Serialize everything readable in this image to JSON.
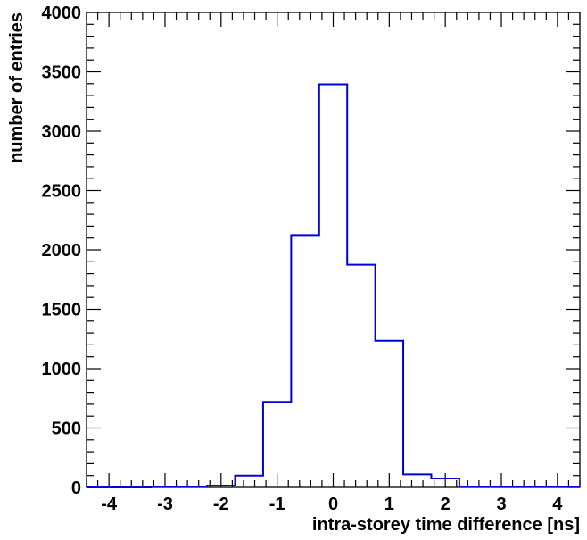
{
  "chart_data": {
    "type": "histogram",
    "xlabel": "intra-storey time difference [ns]",
    "ylabel": "number of entries",
    "xlim": [
      -4.4,
      4.4
    ],
    "ylim": [
      0,
      4000
    ],
    "x_ticks": [
      -4,
      -3,
      -2,
      -1,
      0,
      1,
      2,
      3,
      4
    ],
    "x_tick_labels": [
      "-4",
      "-3",
      "-2",
      "-1",
      "0",
      "1",
      "2",
      "3",
      "4"
    ],
    "y_ticks": [
      0,
      500,
      1000,
      1500,
      2000,
      2500,
      3000,
      3500,
      4000
    ],
    "y_tick_labels": [
      "0",
      "500",
      "1000",
      "1500",
      "2000",
      "2500",
      "3000",
      "3500",
      "4000"
    ],
    "bin_edges": [
      -4.4,
      -3.25,
      -2.25,
      -1.75,
      -1.25,
      -0.75,
      -0.25,
      0.25,
      0.75,
      1.25,
      1.75,
      2.25,
      4.4
    ],
    "counts": [
      0,
      5,
      15,
      100,
      720,
      2125,
      3395,
      1875,
      1235,
      110,
      75,
      5
    ],
    "line_color": "#0000d6",
    "grid": false,
    "frame": "box"
  }
}
